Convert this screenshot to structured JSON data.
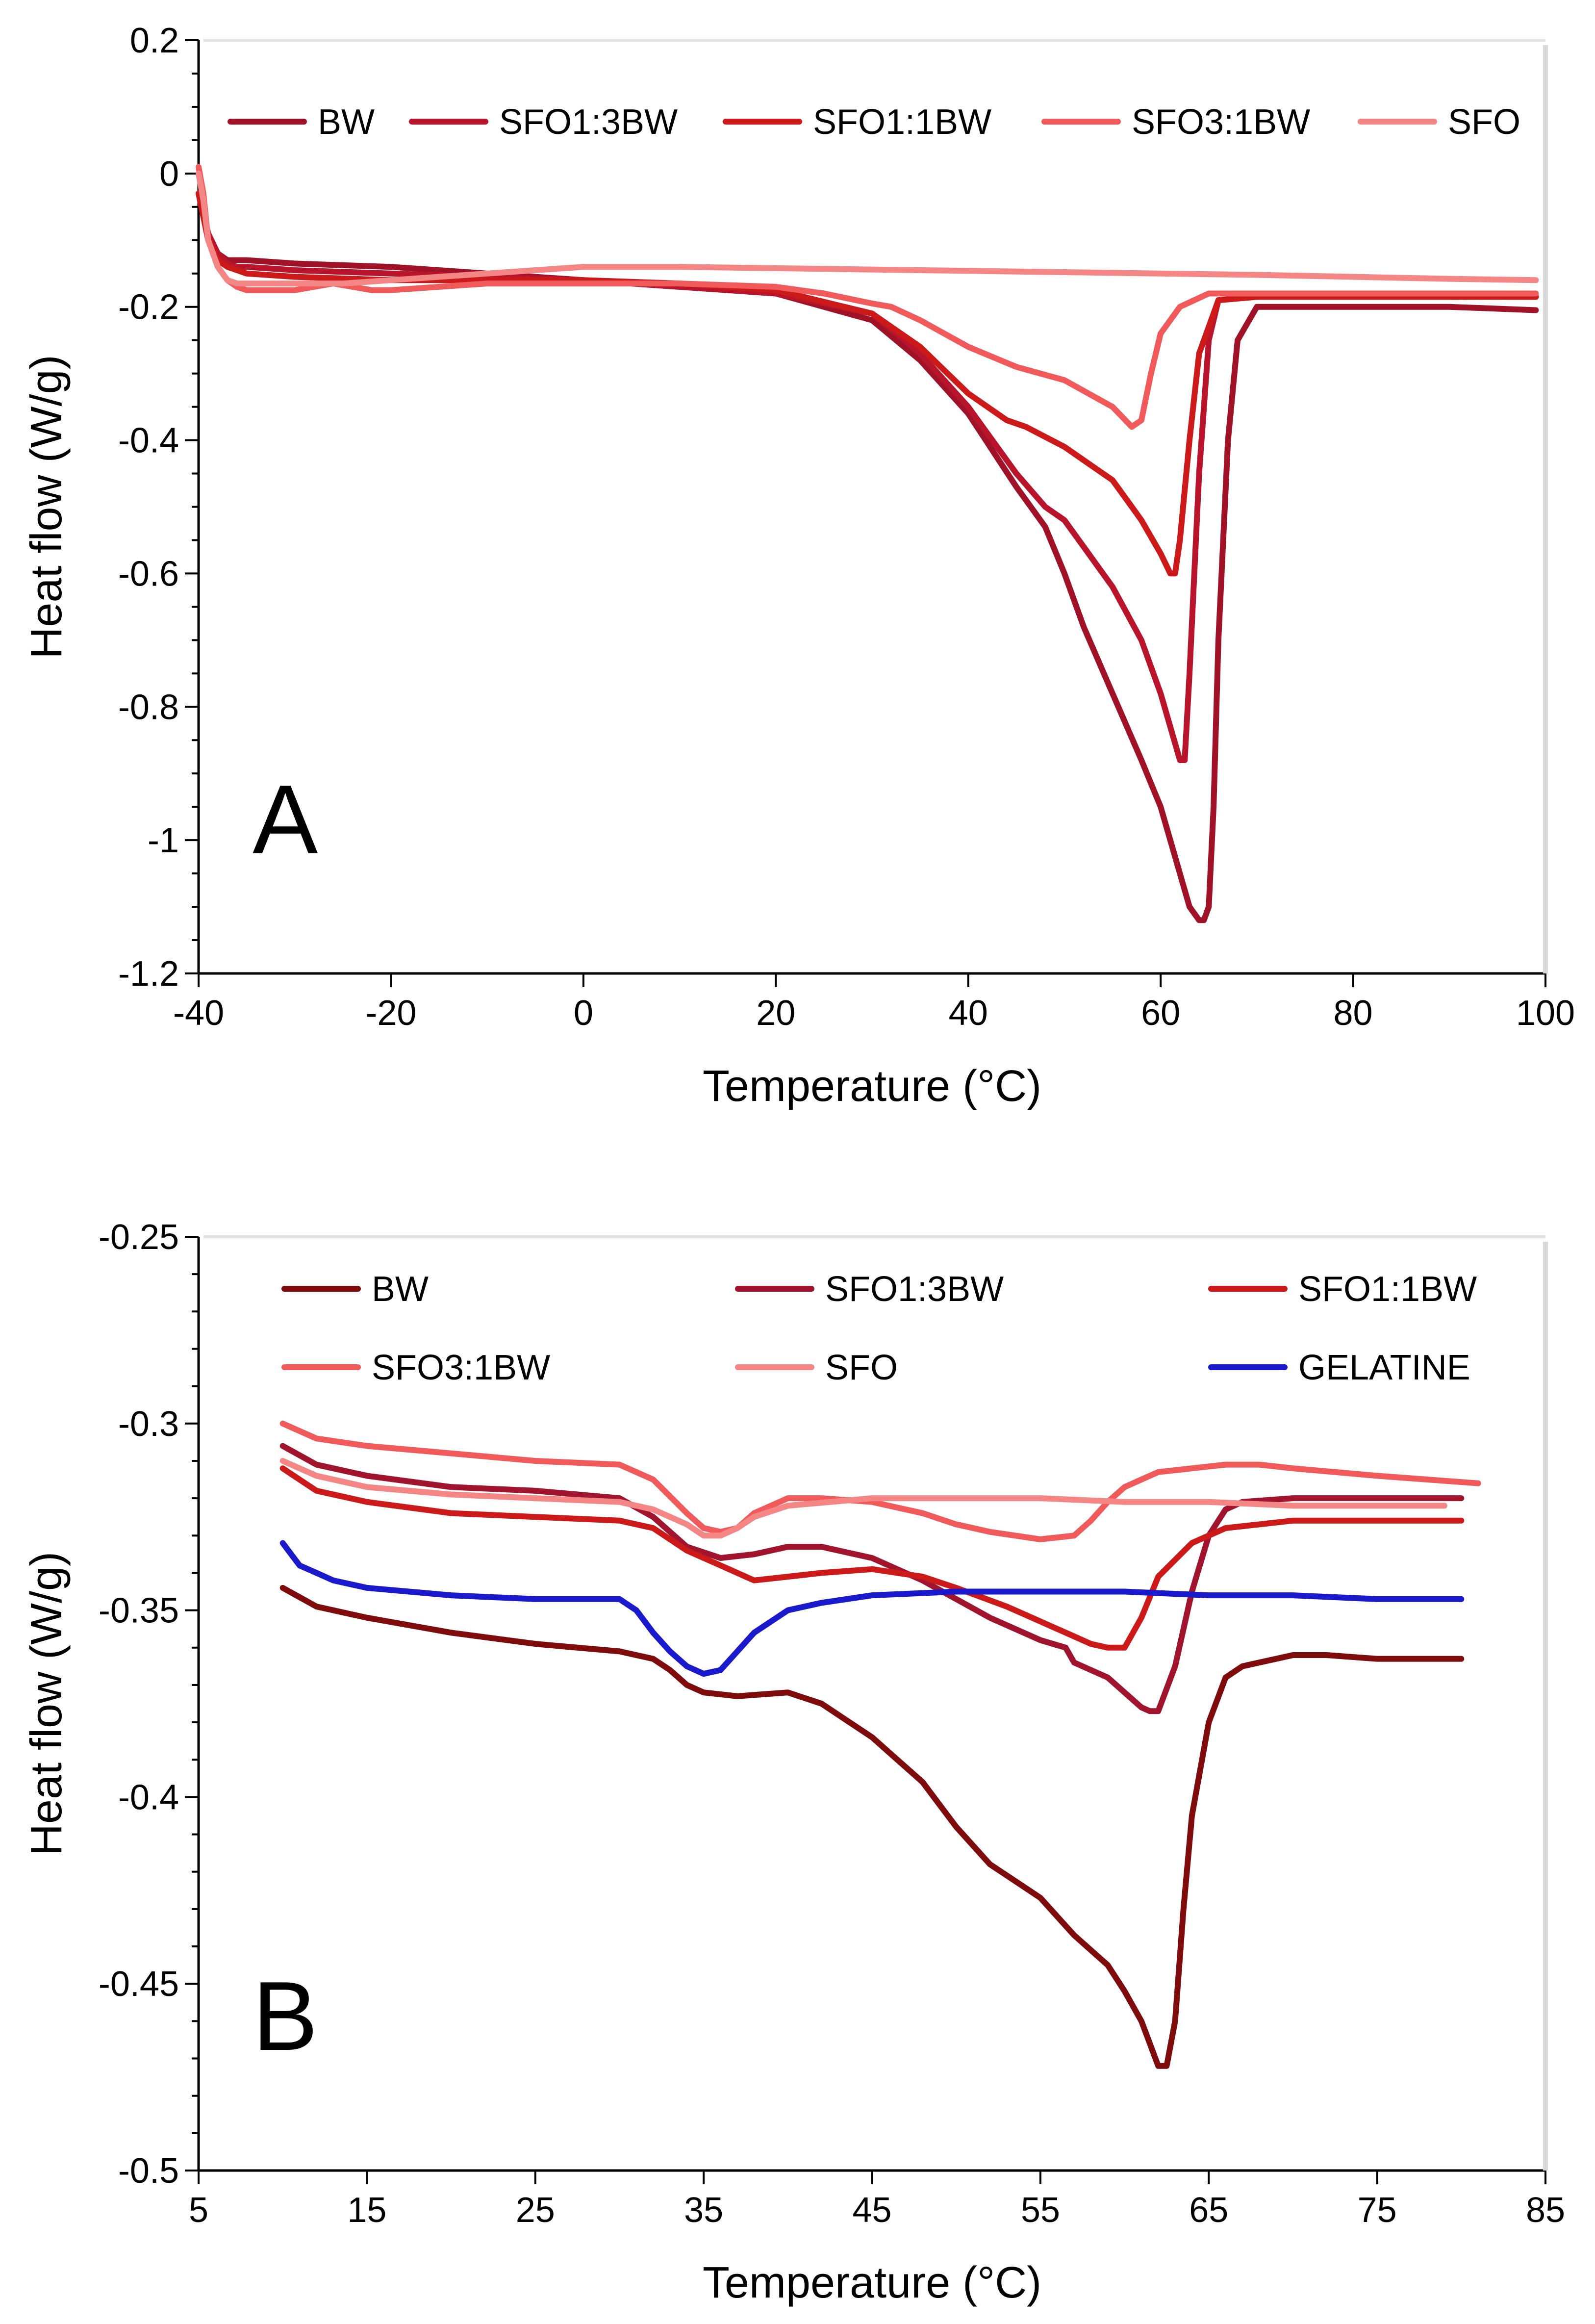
{
  "colors": {
    "BW_A": "#a01228",
    "SFO13_A": "#b8142c",
    "SFO11_A": "#cc1a1a",
    "SFO31_A": "#f05a5a",
    "SFO_A": "#f48686",
    "BW_B": "#7f0c0c",
    "SFO13_B": "#a0142e",
    "SFO11_B": "#cc1a1a",
    "SFO31_B": "#f05a5a",
    "SFO_B": "#f48686",
    "GELATINE": "#1a1acc"
  },
  "chart_data": [
    {
      "type": "line",
      "panel_label": "A",
      "xlabel": "Temperature (°C)",
      "ylabel": "Heat flow (W/g)",
      "xlim": [
        -40,
        100
      ],
      "ylim": [
        -1.2,
        0.2
      ],
      "xticks": [
        -40,
        -20,
        0,
        20,
        40,
        60,
        80,
        100
      ],
      "xtick_labels": [
        "-40",
        "-20",
        "0",
        "20",
        "40",
        "60",
        "80",
        "100"
      ],
      "yticks": [
        0.2,
        0,
        -0.2,
        -0.4,
        -0.6,
        -0.8,
        -1,
        -1.2
      ],
      "ytick_labels": [
        "0.2",
        "0",
        "-0.2",
        "-0.4",
        "-0.6",
        "-0.8",
        "-1",
        "-1.2"
      ],
      "legend_position": "top",
      "series": [
        {
          "name": "BW",
          "color_key": "BW_A",
          "x": [
            -40,
            -39,
            -38,
            -37,
            -36,
            -35,
            -30,
            -20,
            -10,
            0,
            10,
            20,
            30,
            35,
            40,
            45,
            48,
            50,
            52,
            55,
            58,
            60,
            62,
            63,
            64,
            64.5,
            65,
            65.5,
            66,
            67,
            68,
            70,
            80,
            90,
            99
          ],
          "y": [
            -0.03,
            -0.09,
            -0.12,
            -0.13,
            -0.13,
            -0.13,
            -0.135,
            -0.14,
            -0.15,
            -0.16,
            -0.17,
            -0.18,
            -0.22,
            -0.28,
            -0.36,
            -0.47,
            -0.53,
            -0.6,
            -0.68,
            -0.78,
            -0.88,
            -0.95,
            -1.05,
            -1.1,
            -1.12,
            -1.12,
            -1.1,
            -0.95,
            -0.7,
            -0.4,
            -0.25,
            -0.2,
            -0.2,
            -0.2,
            -0.205
          ]
        },
        {
          "name": "SFO1:3BW",
          "color_key": "SFO13_A",
          "x": [
            -40,
            -39,
            -38,
            -37,
            -36,
            -35,
            -30,
            -20,
            -10,
            0,
            10,
            20,
            30,
            35,
            40,
            45,
            48,
            50,
            52,
            55,
            58,
            60,
            61,
            62,
            62.5,
            63,
            64,
            65,
            66,
            70,
            80,
            90,
            99
          ],
          "y": [
            -0.03,
            -0.09,
            -0.12,
            -0.135,
            -0.14,
            -0.14,
            -0.145,
            -0.15,
            -0.155,
            -0.16,
            -0.17,
            -0.18,
            -0.21,
            -0.27,
            -0.35,
            -0.45,
            -0.5,
            -0.52,
            -0.56,
            -0.62,
            -0.7,
            -0.78,
            -0.83,
            -0.88,
            -0.88,
            -0.75,
            -0.45,
            -0.25,
            -0.19,
            -0.185,
            -0.185,
            -0.185,
            -0.185
          ]
        },
        {
          "name": "SFO1:1BW",
          "color_key": "SFO11_A",
          "x": [
            -40,
            -39,
            -38,
            -37,
            -36,
            -35,
            -30,
            -20,
            -10,
            0,
            10,
            20,
            30,
            35,
            40,
            44,
            46,
            50,
            52,
            55,
            58,
            60,
            61,
            61.5,
            62,
            63,
            64,
            66,
            70,
            80,
            90,
            99
          ],
          "y": [
            -0.03,
            -0.1,
            -0.13,
            -0.14,
            -0.145,
            -0.15,
            -0.155,
            -0.16,
            -0.16,
            -0.16,
            -0.165,
            -0.175,
            -0.21,
            -0.26,
            -0.33,
            -0.37,
            -0.38,
            -0.41,
            -0.43,
            -0.46,
            -0.52,
            -0.57,
            -0.6,
            -0.6,
            -0.55,
            -0.4,
            -0.27,
            -0.19,
            -0.185,
            -0.185,
            -0.185,
            -0.185
          ]
        },
        {
          "name": "SFO3:1BW",
          "color_key": "SFO31_A",
          "x": [
            -40,
            -39.5,
            -39,
            -38,
            -37,
            -36,
            -35,
            -34,
            -32,
            -30,
            -26,
            -24,
            -22,
            -20,
            -15,
            -10,
            0,
            10,
            20,
            25,
            30,
            32,
            35,
            40,
            45,
            50,
            55,
            57,
            58,
            59,
            60,
            62,
            65,
            70,
            80,
            90,
            99
          ],
          "y": [
            0.01,
            -0.03,
            -0.1,
            -0.14,
            -0.16,
            -0.17,
            -0.175,
            -0.175,
            -0.175,
            -0.175,
            -0.165,
            -0.17,
            -0.175,
            -0.175,
            -0.17,
            -0.165,
            -0.165,
            -0.165,
            -0.17,
            -0.18,
            -0.195,
            -0.2,
            -0.22,
            -0.26,
            -0.29,
            -0.31,
            -0.35,
            -0.38,
            -0.37,
            -0.3,
            -0.24,
            -0.2,
            -0.18,
            -0.18,
            -0.18,
            -0.18,
            -0.18
          ]
        },
        {
          "name": "SFO",
          "color_key": "SFO_A",
          "x": [
            -40,
            -39.5,
            -39,
            -38,
            -37,
            -36,
            -35,
            -33,
            -30,
            -25,
            -20,
            -15,
            -10,
            -5,
            0,
            10,
            20,
            30,
            40,
            50,
            60,
            70,
            80,
            90,
            99
          ],
          "y": [
            0.0,
            -0.04,
            -0.1,
            -0.14,
            -0.16,
            -0.165,
            -0.165,
            -0.165,
            -0.165,
            -0.165,
            -0.16,
            -0.155,
            -0.15,
            -0.145,
            -0.14,
            -0.14,
            -0.142,
            -0.144,
            -0.146,
            -0.148,
            -0.15,
            -0.152,
            -0.155,
            -0.158,
            -0.16
          ]
        }
      ]
    },
    {
      "type": "line",
      "panel_label": "B",
      "xlabel": "Temperature (°C)",
      "ylabel": "Heat flow (W/g)",
      "xlim": [
        5,
        85
      ],
      "ylim": [
        -0.5,
        -0.25
      ],
      "xticks": [
        5,
        15,
        25,
        35,
        45,
        55,
        65,
        75,
        85
      ],
      "xtick_labels": [
        "5",
        "15",
        "25",
        "35",
        "45",
        "55",
        "65",
        "75",
        "85"
      ],
      "yticks": [
        -0.25,
        -0.3,
        -0.35,
        -0.4,
        -0.45,
        -0.5
      ],
      "ytick_labels": [
        "-0.25",
        "-0.3",
        "-0.35",
        "-0.4",
        "-0.45",
        "-0.5"
      ],
      "legend_position": "top",
      "series": [
        {
          "name": "BW",
          "color_key": "BW_B",
          "x": [
            10,
            12,
            15,
            20,
            25,
            30,
            32,
            33,
            34,
            35,
            37,
            40,
            42,
            45,
            48,
            50,
            52,
            55,
            57,
            59,
            60,
            61,
            61.5,
            62,
            62.5,
            63,
            63.5,
            64,
            65,
            66,
            67,
            70,
            72,
            75,
            80
          ],
          "y": [
            -0.344,
            -0.349,
            -0.352,
            -0.356,
            -0.359,
            -0.361,
            -0.363,
            -0.366,
            -0.37,
            -0.372,
            -0.373,
            -0.372,
            -0.375,
            -0.384,
            -0.396,
            -0.408,
            -0.418,
            -0.427,
            -0.437,
            -0.445,
            -0.452,
            -0.46,
            -0.466,
            -0.472,
            -0.472,
            -0.46,
            -0.43,
            -0.405,
            -0.38,
            -0.368,
            -0.365,
            -0.362,
            -0.362,
            -0.363,
            -0.363
          ]
        },
        {
          "name": "SFO1:3BW",
          "color_key": "SFO13_B",
          "x": [
            10,
            12,
            15,
            20,
            25,
            30,
            32,
            34,
            36,
            38,
            40,
            42,
            45,
            48,
            50,
            52,
            55,
            56.5,
            57,
            59,
            60,
            61,
            61.5,
            62,
            63,
            64,
            65,
            66,
            67,
            70,
            75,
            80
          ],
          "y": [
            -0.306,
            -0.311,
            -0.314,
            -0.317,
            -0.318,
            -0.32,
            -0.325,
            -0.333,
            -0.336,
            -0.335,
            -0.333,
            -0.333,
            -0.336,
            -0.342,
            -0.347,
            -0.352,
            -0.358,
            -0.36,
            -0.364,
            -0.368,
            -0.372,
            -0.376,
            -0.377,
            -0.377,
            -0.365,
            -0.345,
            -0.33,
            -0.323,
            -0.321,
            -0.32,
            -0.32,
            -0.32
          ]
        },
        {
          "name": "SFO1:1BW",
          "color_key": "SFO11_B",
          "x": [
            10,
            12,
            15,
            20,
            25,
            30,
            32,
            34,
            36,
            38,
            40,
            42,
            45,
            48,
            50,
            53,
            55,
            57,
            58,
            59,
            60,
            61,
            62,
            64,
            66,
            70,
            75,
            80
          ],
          "y": [
            -0.312,
            -0.318,
            -0.321,
            -0.324,
            -0.325,
            -0.326,
            -0.328,
            -0.334,
            -0.338,
            -0.342,
            -0.341,
            -0.34,
            -0.339,
            -0.341,
            -0.344,
            -0.349,
            -0.353,
            -0.357,
            -0.359,
            -0.36,
            -0.36,
            -0.352,
            -0.341,
            -0.332,
            -0.328,
            -0.326,
            -0.326,
            -0.326
          ]
        },
        {
          "name": "SFO3:1BW",
          "color_key": "SFO31_B",
          "x": [
            10,
            12,
            15,
            20,
            25,
            30,
            32,
            34,
            35,
            36,
            37,
            38,
            40,
            42,
            45,
            48,
            50,
            52,
            55,
            57,
            58,
            59,
            60,
            61,
            62,
            64,
            66,
            68,
            70,
            75,
            81
          ],
          "y": [
            -0.3,
            -0.304,
            -0.306,
            -0.308,
            -0.31,
            -0.311,
            -0.315,
            -0.324,
            -0.328,
            -0.329,
            -0.328,
            -0.324,
            -0.32,
            -0.32,
            -0.321,
            -0.324,
            -0.327,
            -0.329,
            -0.331,
            -0.33,
            -0.326,
            -0.321,
            -0.317,
            -0.315,
            -0.313,
            -0.312,
            -0.311,
            -0.311,
            -0.312,
            -0.314,
            -0.316
          ]
        },
        {
          "name": "SFO",
          "color_key": "SFO_B",
          "x": [
            10,
            12,
            15,
            20,
            25,
            30,
            32,
            34,
            35,
            36,
            37,
            38,
            40,
            45,
            50,
            55,
            60,
            65,
            70,
            75,
            79
          ],
          "y": [
            -0.31,
            -0.314,
            -0.317,
            -0.319,
            -0.32,
            -0.321,
            -0.323,
            -0.327,
            -0.33,
            -0.33,
            -0.328,
            -0.325,
            -0.322,
            -0.32,
            -0.32,
            -0.32,
            -0.321,
            -0.321,
            -0.322,
            -0.322,
            -0.322
          ]
        },
        {
          "name": "GELATINE",
          "color_key": "GELATINE",
          "x": [
            10,
            11,
            12,
            13,
            15,
            20,
            25,
            28,
            30,
            31,
            32,
            33,
            34,
            35,
            36,
            37,
            38,
            39,
            40,
            42,
            45,
            50,
            55,
            60,
            65,
            70,
            75,
            80
          ],
          "y": [
            -0.332,
            -0.338,
            -0.34,
            -0.342,
            -0.344,
            -0.346,
            -0.347,
            -0.347,
            -0.347,
            -0.35,
            -0.356,
            -0.361,
            -0.365,
            -0.367,
            -0.366,
            -0.361,
            -0.356,
            -0.353,
            -0.35,
            -0.348,
            -0.346,
            -0.345,
            -0.345,
            -0.345,
            -0.346,
            -0.346,
            -0.347,
            -0.347
          ]
        }
      ]
    }
  ]
}
